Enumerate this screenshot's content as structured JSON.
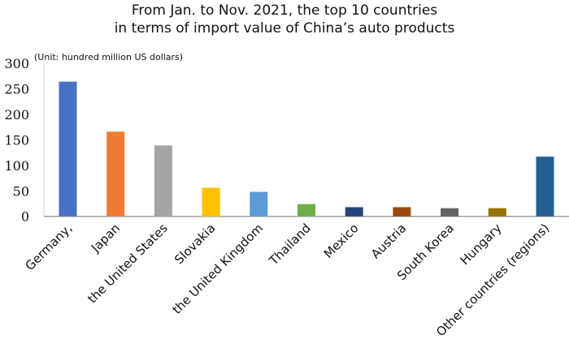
{
  "chart_data": {
    "type": "bar",
    "title_line1": "From Jan. to Nov. 2021, the top 10 countries",
    "title_line2": "in terms of import value of China’s auto products",
    "unit_note": "(Unit: hundred million US dollars)",
    "categories": [
      "Germany,",
      "Japan",
      "the United States",
      "Slovakia",
      "the United Kingdom",
      "Thailand",
      "Mexico",
      "Austria",
      "South Korea",
      "Hungary",
      "Other countries (regions)"
    ],
    "values": [
      264,
      166,
      139,
      56,
      48,
      24,
      18,
      18,
      16,
      16,
      117
    ],
    "colors": [
      "#4472c4",
      "#ed7d31",
      "#a5a5a5",
      "#ffc000",
      "#5b9bd5",
      "#70ad47",
      "#264478",
      "#9e480e",
      "#636363",
      "#997300",
      "#255e91"
    ],
    "ylim": [
      0,
      300
    ],
    "yticks": [
      0,
      50,
      100,
      150,
      200,
      250,
      300
    ],
    "xlabel": "",
    "ylabel": "",
    "grid": false,
    "legend": "none"
  }
}
